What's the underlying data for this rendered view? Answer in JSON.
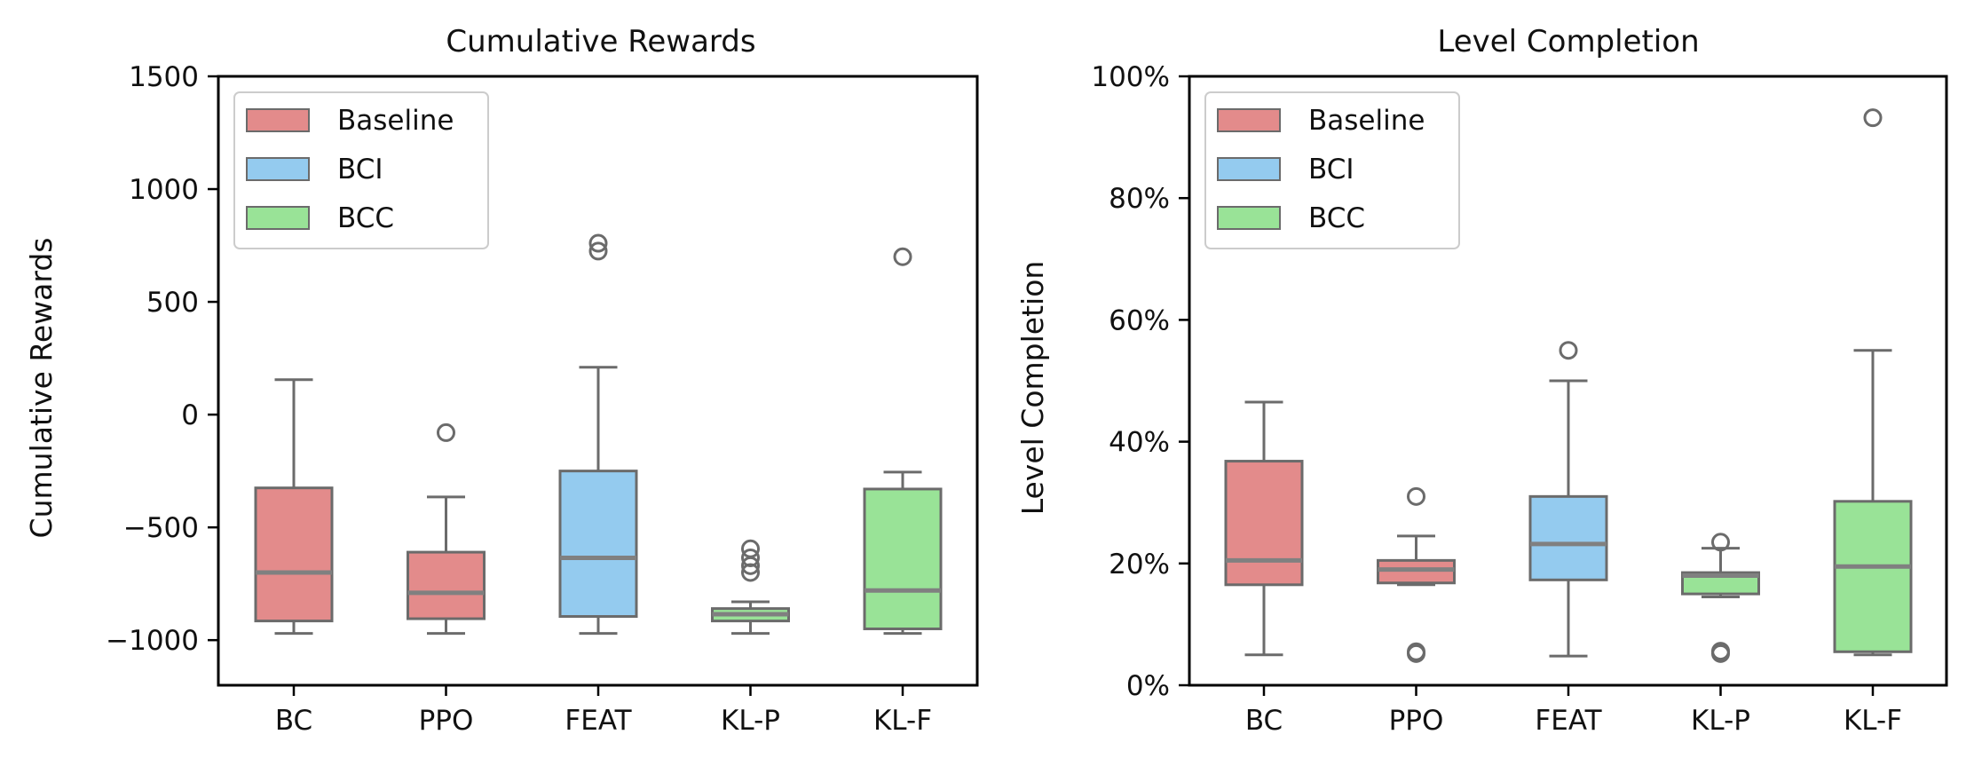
{
  "chart_data": [
    {
      "type": "boxplot",
      "title": "Cumulative Rewards",
      "xlabel": "",
      "ylabel": "Cumulative Rewards",
      "ylim": [
        -1200,
        1500
      ],
      "yticks": [
        -1000,
        -500,
        0,
        500,
        1000,
        1500
      ],
      "ytick_labels": [
        "−1000",
        "−500",
        "0",
        "500",
        "1000",
        "1500"
      ],
      "categories": [
        "BC",
        "PPO",
        "FEAT",
        "KL-P",
        "KL-F"
      ],
      "legend": {
        "placement": "top-left",
        "entries": [
          "Baseline",
          "BCI",
          "BCC"
        ]
      },
      "grid": false,
      "boxes": [
        {
          "category": "BC",
          "group": "Baseline",
          "whislo": -970,
          "q1": -915,
          "median": -700,
          "q3": -325,
          "whishi": 155,
          "fliers": []
        },
        {
          "category": "PPO",
          "group": "Baseline",
          "whislo": -970,
          "q1": -905,
          "median": -790,
          "q3": -610,
          "whishi": -365,
          "fliers": [
            -80
          ]
        },
        {
          "category": "FEAT",
          "group": "BCI",
          "whislo": -970,
          "q1": -895,
          "median": -635,
          "q3": -250,
          "whishi": 210,
          "fliers": [
            725,
            760
          ]
        },
        {
          "category": "KL-P",
          "group": "BCC",
          "whislo": -970,
          "q1": -915,
          "median": -885,
          "q3": -860,
          "whishi": -830,
          "fliers": [
            -700,
            -670,
            -635,
            -595
          ]
        },
        {
          "category": "KL-F",
          "group": "BCC",
          "whislo": -970,
          "q1": -950,
          "median": -780,
          "q3": -330,
          "whishi": -255,
          "fliers": [
            700
          ]
        }
      ]
    },
    {
      "type": "boxplot",
      "title": "Level Completion",
      "xlabel": "",
      "ylabel": "Level Completion",
      "ylim": [
        0,
        100
      ],
      "yticks": [
        0,
        20,
        40,
        60,
        80,
        100
      ],
      "ytick_labels": [
        "0%",
        "20%",
        "40%",
        "60%",
        "80%",
        "100%"
      ],
      "categories": [
        "BC",
        "PPO",
        "FEAT",
        "KL-P",
        "KL-F"
      ],
      "legend": {
        "placement": "top-left",
        "entries": [
          "Baseline",
          "BCI",
          "BCC"
        ]
      },
      "grid": false,
      "boxes": [
        {
          "category": "BC",
          "group": "Baseline",
          "whislo": 5,
          "q1": 16.5,
          "median": 20.5,
          "q3": 36.8,
          "whishi": 46.5,
          "fliers": []
        },
        {
          "category": "PPO",
          "group": "Baseline",
          "whislo": 16.5,
          "q1": 16.8,
          "median": 19,
          "q3": 20.5,
          "whishi": 24.5,
          "fliers": [
            31,
            5.2,
            5.5
          ]
        },
        {
          "category": "FEAT",
          "group": "BCI",
          "whislo": 4.8,
          "q1": 17.3,
          "median": 23.2,
          "q3": 31,
          "whishi": 50,
          "fliers": [
            55
          ]
        },
        {
          "category": "KL-P",
          "group": "BCC",
          "whislo": 14.5,
          "q1": 15,
          "median": 18,
          "q3": 18.5,
          "whishi": 22.5,
          "fliers": [
            23.5,
            5.2,
            5.6
          ]
        },
        {
          "category": "KL-F",
          "group": "BCC",
          "whislo": 5,
          "q1": 5.5,
          "median": 19.5,
          "q3": 30.2,
          "whishi": 55,
          "fliers": [
            93.2
          ]
        }
      ]
    }
  ],
  "colors": {
    "Baseline": "#e38b8b",
    "BCI": "#94cbef",
    "BCC": "#99e397",
    "line": "#6b6b6b",
    "median": "#808080"
  }
}
